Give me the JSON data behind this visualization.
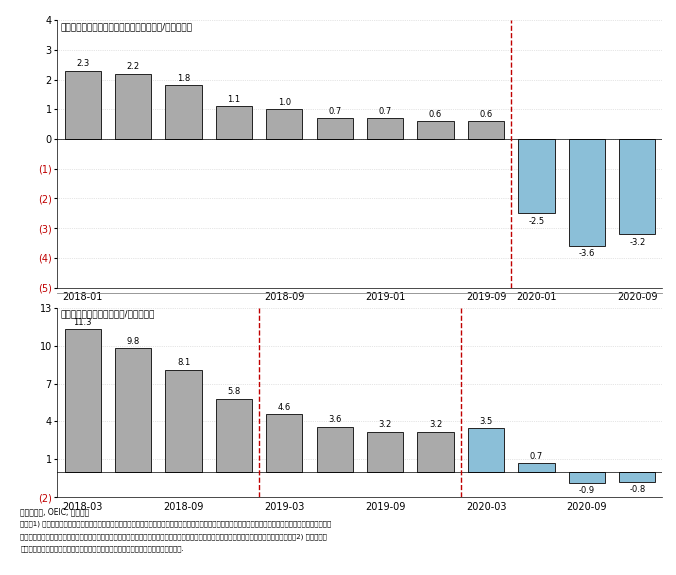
{
  "chart1": {
    "title": "地方政府偿债能力（对税收入扣除利息支出/还本等息）",
    "values": [
      2.3,
      2.2,
      1.8,
      1.1,
      1.0,
      0.7,
      0.7,
      0.6,
      0.6,
      -2.5,
      -3.6,
      -3.2
    ],
    "n_gray": 9,
    "xtick_positions": [
      0,
      4,
      6,
      8,
      9,
      11
    ],
    "xtick_labels": [
      "2018-01",
      "2018-09",
      "2019-01",
      "2019-09",
      "2020-01",
      "2020-09"
    ],
    "dashed_vline": 8.5,
    "ylim": [
      -5,
      4
    ],
    "yticks": [
      4,
      3,
      2,
      1,
      0,
      -1,
      -2,
      -3,
      -4,
      -5
    ],
    "ytick_labels": [
      "4",
      "3",
      "2",
      "1",
      "0",
      "(1)",
      "(2)",
      "(3)",
      "(4)",
      "(5)"
    ],
    "red_ytick_indices": [
      5,
      6,
      7,
      8,
      9
    ]
  },
  "chart2": {
    "title": "地方政府偿债能（对政收入/还本付息）",
    "values": [
      11.3,
      9.8,
      8.1,
      5.8,
      4.6,
      3.6,
      3.2,
      3.2,
      3.5,
      0.7,
      -0.9,
      -0.8
    ],
    "n_gray": 8,
    "xtick_positions": [
      0,
      2,
      4,
      6,
      8,
      10
    ],
    "xtick_labels": [
      "2018-03",
      "2018-09",
      "2019-03",
      "2019-09",
      "2020-03",
      "2020-09"
    ],
    "dashed_vlines": [
      3.5,
      7.5
    ],
    "ylim": [
      -2,
      13
    ],
    "yticks": [
      13,
      10,
      7,
      4,
      1,
      -2
    ],
    "ytick_labels": [
      "13",
      "10",
      "7",
      "4",
      "1",
      "(2)"
    ],
    "red_ytick_indices": [
      5
    ]
  },
  "gray_color": "#aaaaaa",
  "blue_color": "#8bbfd8",
  "bar_edge_color": "#222222",
  "dashed_line_color": "#c00000",
  "grid_color": "#cccccc",
  "background_color": "#ffffff",
  "footnote_source": "来源：万得, OEIC, 文件国际",
  "footnote_note_line1": "备注：1) 及行的行算包括地方政府信债和城投债件个债数据。及行发现之后总的数量和利税根据更好的数据大体一致。然后，及行的行算显示所有货币付事退放大于",
  "footnote_note_line2": "实际货值件数据，总数之第一批。及行认为及行的行算工主变合理，因为如果债债货付算分小时间，地方政府债不分钱券机总是，营付款卖况即期。2) 及行的地方",
  "footnote_note_line3": "政府收入包括内中税种其分计，奖地收入，城土还定支出，扶税率，公费含金，国行率."
}
